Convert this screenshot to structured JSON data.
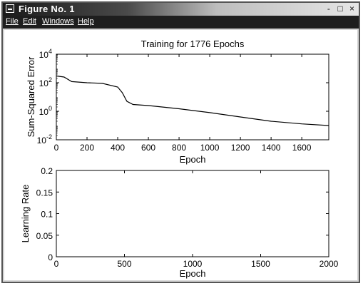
{
  "window": {
    "title": "Figure No. 1",
    "controls": [
      "-",
      "□",
      "×"
    ]
  },
  "menu": {
    "items": [
      "File",
      "Edit",
      "Windows",
      "Help"
    ]
  },
  "chart_data": [
    {
      "type": "line",
      "title": "Training for 1776 Epochs",
      "xlabel": "Epoch",
      "ylabel": "Sum-Squared Error",
      "xlim": [
        0,
        1776
      ],
      "yscale": "log",
      "ylim": [
        0.01,
        10000
      ],
      "xticks": [
        "0",
        "200",
        "400",
        "600",
        "800",
        "1000",
        "1200",
        "1400",
        "1600"
      ],
      "yticks": [
        "10-2",
        "100",
        "102",
        "104"
      ],
      "x": [
        0,
        50,
        100,
        200,
        300,
        400,
        430,
        460,
        500,
        600,
        800,
        1000,
        1200,
        1400,
        1600,
        1776
      ],
      "y": [
        300,
        250,
        120,
        100,
        90,
        50,
        20,
        5,
        3,
        2.5,
        1.5,
        0.8,
        0.4,
        0.2,
        0.13,
        0.1
      ]
    },
    {
      "type": "line",
      "title": "",
      "xlabel": "Epoch",
      "ylabel": "Learning Rate",
      "xlim": [
        0,
        2000
      ],
      "ylim": [
        0,
        0.2
      ],
      "xticks": [
        "0",
        "500",
        "1000",
        "1500",
        "2000"
      ],
      "yticks": [
        "0",
        "0.05",
        "0.1",
        "0.15",
        "0.2"
      ],
      "x": [],
      "y": []
    }
  ]
}
